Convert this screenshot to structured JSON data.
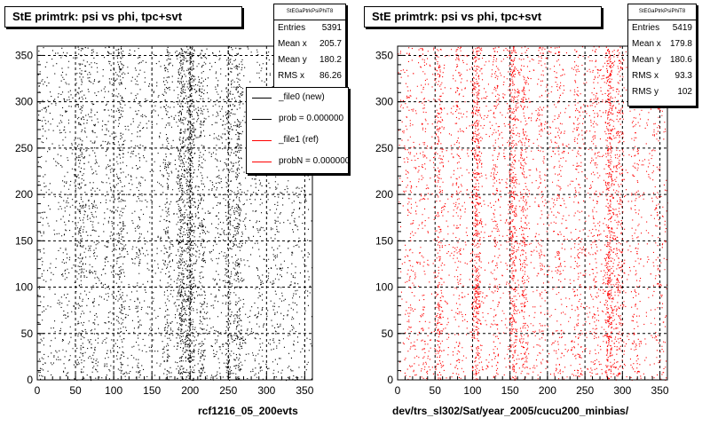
{
  "canvas": {
    "background": "#ffffff"
  },
  "panels": [
    {
      "title": "StE primtrk: psi vs phi, tpc+svt",
      "stats": {
        "header": "StEGaPtrkPsiPhiT8",
        "rows": [
          {
            "label": "Entries",
            "value": "5391"
          },
          {
            "label": "Mean x",
            "value": "205.7"
          },
          {
            "label": "Mean y",
            "value": "180.2"
          },
          {
            "label": "RMS x",
            "value": "86.26"
          }
        ]
      },
      "legend": {
        "items": [
          {
            "label": "_file0 (new)",
            "color": "#000000"
          },
          {
            "label": "prob = 0.000000",
            "color": "#000000"
          },
          {
            "label": "_file1 (ref)",
            "color": "#ff0000"
          },
          {
            "label": "probN = 0.000000",
            "color": "#ff0000"
          }
        ]
      },
      "footer": "rcf1216_05_200evts",
      "point_color": "#000000"
    },
    {
      "title": "StE primtrk: psi vs phi, tpc+svt",
      "stats": {
        "header": "StEGaPtrkPsiPhiT8",
        "rows": [
          {
            "label": "Entries",
            "value": "5419"
          },
          {
            "label": "Mean x",
            "value": "179.8"
          },
          {
            "label": "Mean y",
            "value": "180.6"
          },
          {
            "label": "RMS x",
            "value": "93.3"
          },
          {
            "label": "RMS y",
            "value": "102"
          }
        ]
      },
      "footer": "dev/trs_sl302/Sat/year_2005/cucu200_minbias/",
      "point_color": "#ff0000"
    }
  ],
  "chart_data": [
    {
      "type": "scatter",
      "title": "StE primtrk: psi vs phi, tpc+svt",
      "xlim": [
        0,
        360
      ],
      "ylim": [
        0,
        360
      ],
      "x_ticks": [
        0,
        50,
        100,
        150,
        200,
        250,
        300,
        350
      ],
      "y_ticks": [
        0,
        50,
        100,
        150,
        200,
        250,
        300,
        350
      ],
      "grid": true,
      "entries": 5391,
      "mean_x": 205.7,
      "mean_y": 180.2,
      "rms_x": 86.26,
      "series": [
        {
          "name": "_file0 (new)",
          "color": "#000000",
          "point_count": 5391,
          "x_bands": [
            {
              "x": 7,
              "weight": 0.3
            },
            {
              "x": 35,
              "weight": 0.4
            },
            {
              "x": 56,
              "weight": 1.3
            },
            {
              "x": 72,
              "weight": 0.8
            },
            {
              "x": 92,
              "weight": 0.5
            },
            {
              "x": 108,
              "weight": 1.6
            },
            {
              "x": 132,
              "weight": 0.7
            },
            {
              "x": 170,
              "weight": 1.3
            },
            {
              "x": 188,
              "weight": 2.8
            },
            {
              "x": 200,
              "weight": 3.2
            },
            {
              "x": 214,
              "weight": 1.2
            },
            {
              "x": 234,
              "weight": 0.6
            },
            {
              "x": 250,
              "weight": 1.3
            },
            {
              "x": 262,
              "weight": 1.8
            },
            {
              "x": 289,
              "weight": 0.6
            },
            {
              "x": 312,
              "weight": 0.7
            },
            {
              "x": 335,
              "weight": 0.4
            }
          ]
        }
      ]
    },
    {
      "type": "scatter",
      "title": "StE primtrk: psi vs phi, tpc+svt",
      "xlim": [
        0,
        360
      ],
      "ylim": [
        0,
        360
      ],
      "x_ticks": [
        0,
        50,
        100,
        150,
        200,
        250,
        300,
        350
      ],
      "y_ticks": [
        0,
        50,
        100,
        150,
        200,
        250,
        300,
        350
      ],
      "grid": true,
      "entries": 5419,
      "mean_x": 179.8,
      "mean_y": 180.6,
      "rms_x": 93.3,
      "rms_y": 102,
      "series": [
        {
          "name": "_file1 (ref)",
          "color": "#ff0000",
          "point_count": 5419,
          "x_bands": [
            {
              "x": 15,
              "weight": 0.4
            },
            {
              "x": 35,
              "weight": 0.4
            },
            {
              "x": 55,
              "weight": 1.2
            },
            {
              "x": 80,
              "weight": 0.6
            },
            {
              "x": 105,
              "weight": 2.4
            },
            {
              "x": 130,
              "weight": 0.6
            },
            {
              "x": 153,
              "weight": 1.8
            },
            {
              "x": 168,
              "weight": 1.0
            },
            {
              "x": 190,
              "weight": 0.5
            },
            {
              "x": 215,
              "weight": 0.5
            },
            {
              "x": 240,
              "weight": 0.6
            },
            {
              "x": 262,
              "weight": 0.7
            },
            {
              "x": 282,
              "weight": 2.6
            },
            {
              "x": 295,
              "weight": 1.0
            },
            {
              "x": 318,
              "weight": 0.5
            },
            {
              "x": 345,
              "weight": 0.3
            }
          ]
        }
      ]
    }
  ]
}
